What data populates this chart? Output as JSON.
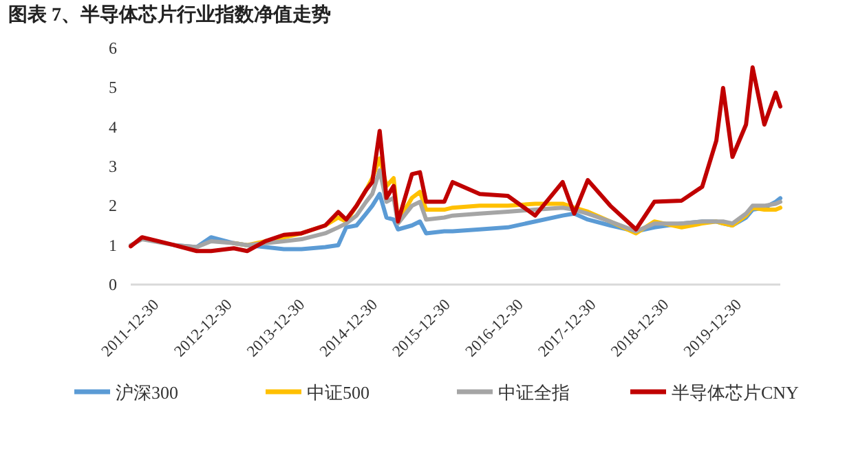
{
  "chart_data": {
    "type": "line",
    "title": "图表 7、半导体芯片行业指数净值走势",
    "x": [
      "2011-12-30",
      "2012-02-25",
      "2012-08-05",
      "2012-11-25",
      "2013-02-05",
      "2013-05-30",
      "2013-08-05",
      "2013-11-05",
      "2014-02-05",
      "2014-05-05",
      "2014-09-01",
      "2014-11-05",
      "2014-12-15",
      "2015-02-05",
      "2015-03-25",
      "2015-04-25",
      "2015-06-01",
      "2015-07-05",
      "2015-08-10",
      "2015-09-01",
      "2015-11-10",
      "2015-12-20",
      "2016-01-20",
      "2016-04-20",
      "2016-06-01",
      "2016-10-15",
      "2017-03-05",
      "2017-07-20",
      "2017-12-05",
      "2018-02-01",
      "2018-04-10",
      "2018-08-01",
      "2018-12-08",
      "2019-03-10",
      "2019-07-25",
      "2019-11-05",
      "2020-01-15",
      "2020-02-18",
      "2020-04-05",
      "2020-06-12",
      "2020-07-15",
      "2020-09-12",
      "2020-11-08",
      "2020-12-01"
    ],
    "series": [
      {
        "name": "沪深300",
        "color": "#5b9bd5",
        "values": [
          null,
          null,
          1.0,
          0.95,
          1.2,
          1.05,
          1.0,
          0.95,
          0.9,
          0.9,
          0.95,
          1.0,
          1.45,
          1.5,
          1.8,
          2.0,
          2.3,
          1.7,
          1.65,
          1.4,
          1.5,
          1.6,
          1.3,
          1.35,
          1.35,
          1.4,
          1.45,
          1.6,
          1.75,
          1.8,
          1.65,
          1.5,
          1.35,
          1.45,
          1.55,
          1.6,
          1.6,
          1.55,
          1.5,
          1.7,
          1.9,
          1.95,
          2.1,
          2.19
        ]
      },
      {
        "name": "中证500",
        "color": "#ffc000",
        "values": [
          null,
          null,
          null,
          null,
          null,
          1.05,
          1.0,
          1.1,
          1.2,
          1.3,
          1.5,
          1.7,
          1.6,
          2.0,
          2.4,
          2.7,
          3.2,
          2.5,
          2.7,
          1.6,
          2.2,
          2.35,
          1.9,
          1.9,
          1.95,
          2.0,
          2.0,
          2.05,
          2.05,
          1.95,
          1.85,
          1.6,
          1.3,
          1.6,
          1.45,
          1.55,
          1.6,
          1.55,
          1.5,
          1.75,
          1.95,
          1.9,
          1.9,
          1.95
        ]
      },
      {
        "name": "中证全指",
        "color": "#a5a5a5",
        "values": [
          1.0,
          1.15,
          1.0,
          0.95,
          1.1,
          1.05,
          1.0,
          1.05,
          1.1,
          1.15,
          1.3,
          1.45,
          1.55,
          1.75,
          2.1,
          2.3,
          2.9,
          2.1,
          2.2,
          1.55,
          2.0,
          2.1,
          1.65,
          1.7,
          1.75,
          1.8,
          1.85,
          1.9,
          1.95,
          1.9,
          1.8,
          1.6,
          1.35,
          1.55,
          1.55,
          1.6,
          1.6,
          1.6,
          1.55,
          1.8,
          2.0,
          2.0,
          2.05,
          2.1
        ]
      },
      {
        "name": "半导体芯片CNY",
        "color": "#c00000",
        "values": [
          0.97,
          1.2,
          1.0,
          0.85,
          0.85,
          0.92,
          0.85,
          1.1,
          1.26,
          1.3,
          1.5,
          1.84,
          1.65,
          2.0,
          2.4,
          2.6,
          3.9,
          2.2,
          2.5,
          1.6,
          2.8,
          2.85,
          2.1,
          2.1,
          2.6,
          2.3,
          2.25,
          1.75,
          2.6,
          1.8,
          2.65,
          2.0,
          1.4,
          2.1,
          2.13,
          2.48,
          3.65,
          4.99,
          3.24,
          4.06,
          5.51,
          4.06,
          4.87,
          4.52
        ]
      }
    ],
    "xlim": [
      "2011-12-30",
      "2020-12-01"
    ],
    "xticks": [
      "2011-12-30",
      "2012-12-30",
      "2013-12-30",
      "2014-12-30",
      "2015-12-30",
      "2016-12-30",
      "2017-12-30",
      "2018-12-30",
      "2019-12-30"
    ],
    "ylim": [
      0,
      6
    ],
    "yticks": [
      0,
      1,
      2,
      3,
      4,
      5,
      6
    ],
    "grid": false,
    "legend": "bottom",
    "marker": "none",
    "line_style": "solid"
  }
}
